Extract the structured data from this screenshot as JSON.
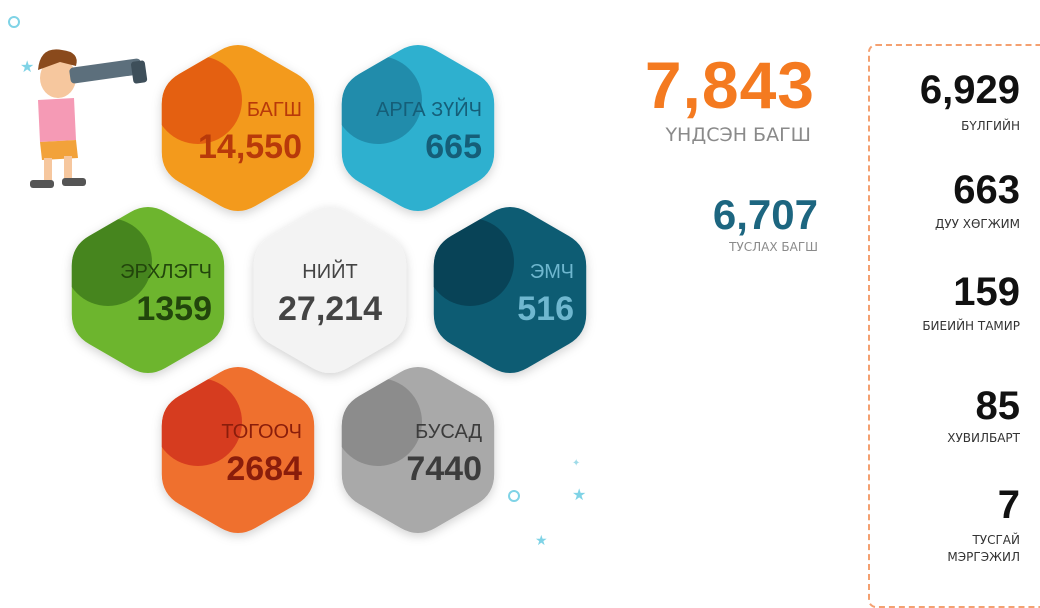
{
  "hexagons": [
    {
      "label": "БАГШ",
      "value": "14,550",
      "color": "#f39a1e",
      "dark": "#e0560f",
      "text": "#b8390a"
    },
    {
      "label": "АРГА ЗҮЙЧ",
      "value": "665",
      "color": "#2fb0cf",
      "dark": "#1f86a5",
      "text": "#155e78"
    },
    {
      "label": "ЭРХЛЭГЧ",
      "value": "1359",
      "color": "#6db52f",
      "dark": "#3f7d1b",
      "text": "#22450c"
    },
    {
      "label": "НИЙТ",
      "value": "27,214",
      "color": "#f3f3f3",
      "dark": "#f3f3f3",
      "text": "#444444"
    },
    {
      "label": "ЭМЧ",
      "value": "516",
      "color": "#0f5b73",
      "dark": "#083e52",
      "text": "#6fb7cf"
    },
    {
      "label": "ТОГООЧ",
      "value": "2684",
      "color": "#ef6f2d",
      "dark": "#d1331c",
      "text": "#8a1d0b"
    },
    {
      "label": "БУСАД",
      "value": "7440",
      "color": "#a9a9a9",
      "dark": "#878787",
      "text": "#3c3c3c"
    }
  ],
  "main": {
    "value": "7,843",
    "label": "ҮНДСЭН БАГШ"
  },
  "assistant": {
    "value": "6,707",
    "label": "ТУСЛАХ БАГШ"
  },
  "side": [
    {
      "value": "6,929",
      "label": "БҮЛГИЙН"
    },
    {
      "value": "663",
      "label": "ДУУ ХӨГЖИМ"
    },
    {
      "value": "159",
      "label": "БИЕИЙН ТАМИР"
    },
    {
      "value": "85",
      "label": "ХУВИЛБАРТ"
    },
    {
      "value": "7",
      "label": "ТУСГАЙ МЭРГЭЖИЛ"
    }
  ]
}
